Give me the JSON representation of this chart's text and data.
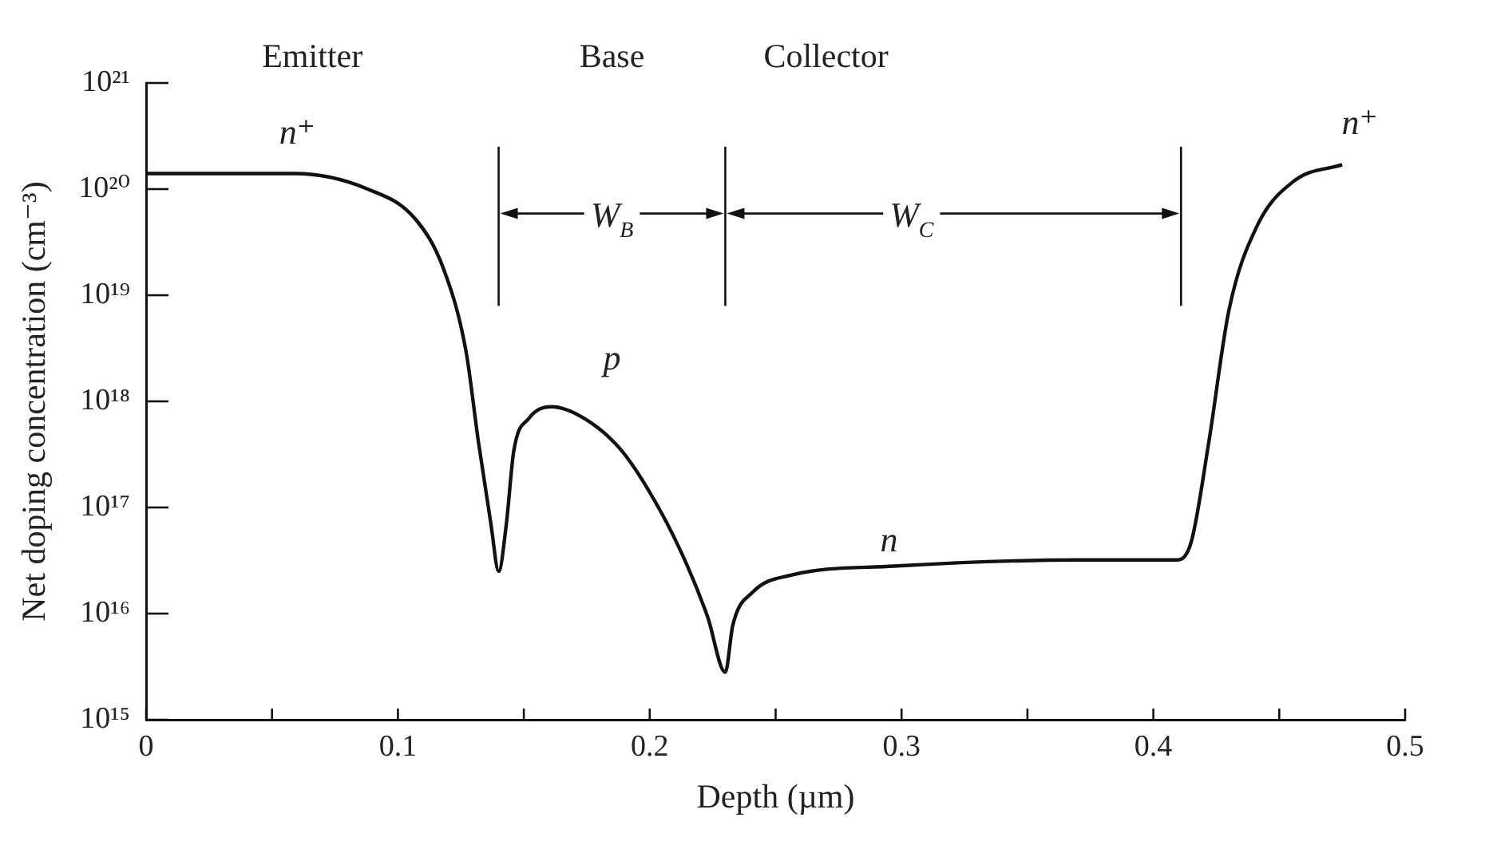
{
  "chart_data": {
    "type": "line",
    "xlabel": "Depth (µm)",
    "ylabel": "Net doping concentration (cm⁻³)",
    "log": "y",
    "grid": false,
    "legend": false,
    "marker": "none",
    "line_style": "solid",
    "xlim": [
      0,
      0.5
    ],
    "xticks": [
      0,
      {
        "value": 0.05,
        "label": null
      },
      0.1,
      {
        "value": 0.15,
        "label": null
      },
      0.2,
      {
        "value": 0.25,
        "label": null
      },
      0.3,
      {
        "value": 0.35,
        "label": null
      },
      0.4,
      {
        "value": 0.45,
        "label": null
      },
      0.5
    ],
    "ylim": [
      1000000000000000.0,
      1e+21
    ],
    "yticks": [
      {
        "value": 1000000000000000.0,
        "label": "10¹⁵"
      },
      {
        "value": 1e+16,
        "label": "10¹⁶"
      },
      {
        "value": 1e+17,
        "label": "10¹⁷"
      },
      {
        "value": 1e+18,
        "label": "10¹⁸"
      },
      {
        "value": 1e+19,
        "label": "10¹⁹"
      },
      {
        "value": 1e+20,
        "label": "10²⁰"
      },
      {
        "value": 1e+21,
        "label": "10²¹"
      }
    ],
    "x": [
      0,
      0.059,
      0.088,
      0.107,
      0.118,
      0.127,
      0.132,
      0.137,
      0.14,
      0.143,
      0.146,
      0.152,
      0.161,
      0.174,
      0.189,
      0.204,
      0.215,
      0.223,
      0.23,
      0.233,
      0.241,
      0.256,
      0.297,
      0.371,
      0.409,
      0.415,
      0.422,
      0.43,
      0.441,
      0.456,
      0.475
    ],
    "series": [
      {
        "color": "#111111",
        "values": [
          1.4e+20,
          1.4e+20,
          1e+20,
          5.2e+19,
          1.8e+19,
          3e+18,
          4.1e+17,
          6.8e+16,
          2.5e+16,
          6.8e+16,
          3.4e+17,
          6.9e+17,
          8.9e+17,
          6.9e+17,
          3.4e+17,
          9.5e+16,
          2.8e+16,
          9300000000000000.0,
          2800000000000000.0,
          7800000000000000.0,
          1.6e+16,
          2.3e+16,
          2.8e+16,
          3.2e+16,
          3.2e+16,
          4.7e+16,
          4.1e+17,
          7.2e+18,
          4.4e+19,
          1.2e+20,
          1.7e+20
        ]
      }
    ],
    "ref_lines": [
      {
        "axis": "x",
        "value": 0.14
      },
      {
        "axis": "x",
        "value": 0.23
      },
      {
        "axis": "x",
        "value": 0.411
      }
    ],
    "annotations": [
      "Emitter",
      "Base",
      "Collector",
      "n⁺",
      "n⁺",
      "W$_{B}$",
      "W$_{C}$",
      "p",
      "n"
    ]
  }
}
